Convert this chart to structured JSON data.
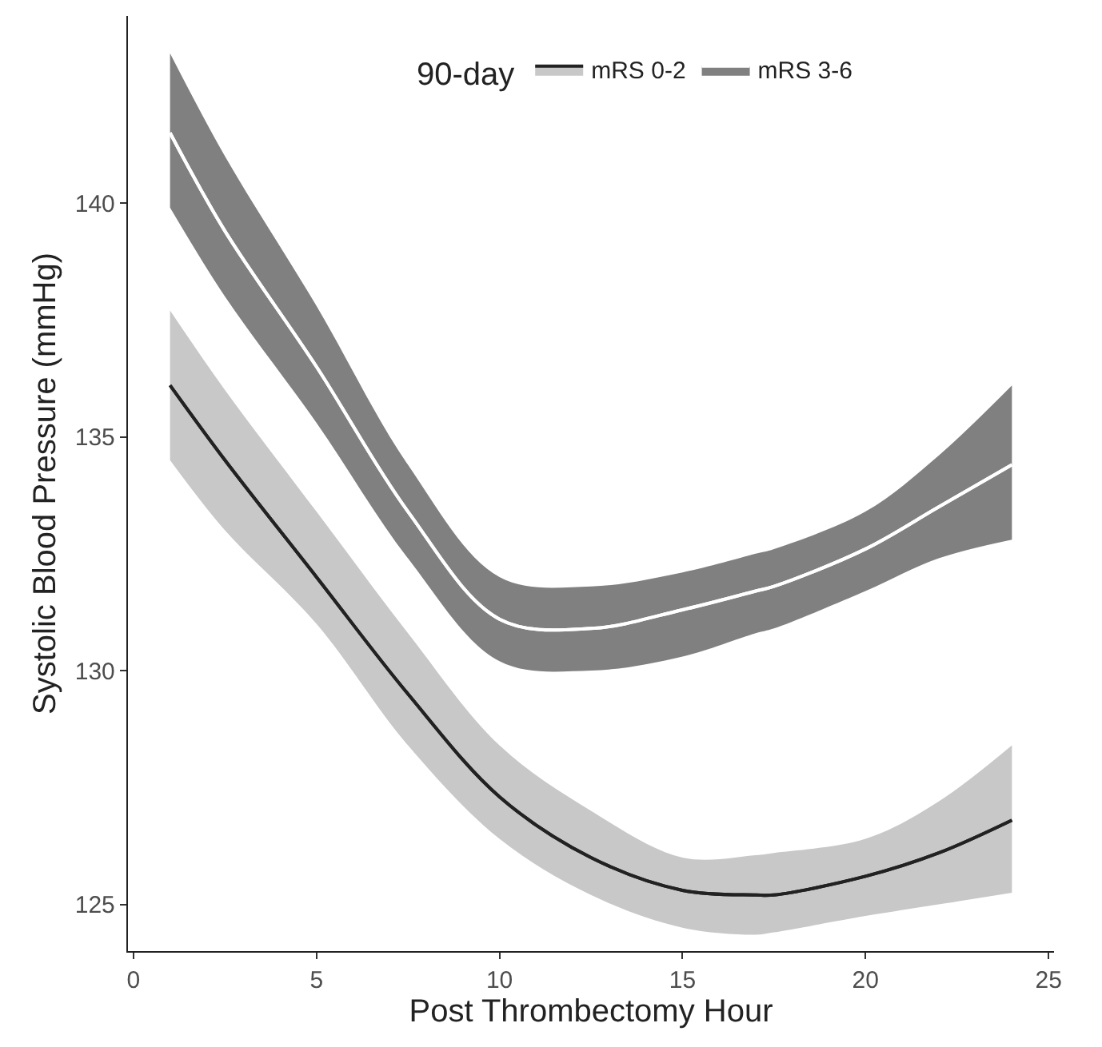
{
  "chart_data": {
    "type": "line",
    "xlabel": "Post Thrombectomy Hour",
    "ylabel": "Systolic Blood Pressure (mmHg)",
    "legend_title": "90-day",
    "legend": "top",
    "x": [
      1,
      2.5,
      5,
      7.5,
      10,
      12.5,
      15,
      17,
      17.5,
      20,
      22,
      24
    ],
    "series": [
      {
        "name": "mRS 0-2",
        "color": "#222222",
        "values": [
          136.1,
          134.5,
          132.0,
          129.5,
          127.3,
          126.0,
          125.3,
          125.2,
          125.2,
          125.6,
          126.1,
          126.8
        ],
        "lower": [
          134.5,
          133.0,
          131.0,
          128.4,
          126.4,
          125.2,
          124.5,
          124.35,
          124.4,
          124.75,
          125.0,
          125.25
        ],
        "upper": [
          137.7,
          136.0,
          133.4,
          130.8,
          128.4,
          127.0,
          126.0,
          126.05,
          126.1,
          126.4,
          127.2,
          128.4
        ]
      },
      {
        "name": "mRS 3-6",
        "color": "#ffffff",
        "values": [
          141.5,
          139.4,
          136.5,
          133.4,
          131.1,
          130.9,
          131.3,
          131.7,
          131.8,
          132.6,
          133.5,
          134.4
        ],
        "lower": [
          139.9,
          138.0,
          135.3,
          132.4,
          130.2,
          130.0,
          130.3,
          130.8,
          130.9,
          131.7,
          132.4,
          132.8
        ],
        "upper": [
          143.2,
          141.0,
          137.8,
          134.4,
          132.0,
          131.8,
          132.1,
          132.5,
          132.6,
          133.4,
          134.6,
          136.1
        ]
      }
    ],
    "colors": [
      "#c8c8c8",
      "#808080"
    ],
    "xlim": [
      -0.15,
      25.15
    ],
    "xticks": [
      0,
      5,
      10,
      15,
      20,
      25
    ],
    "ylim": [
      124,
      144
    ],
    "yticks": [
      125,
      130,
      135,
      140
    ]
  }
}
